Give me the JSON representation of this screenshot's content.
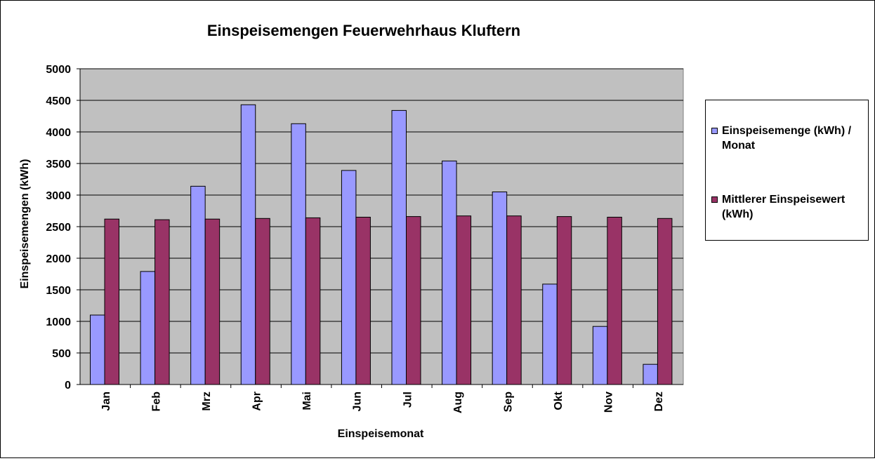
{
  "chart_data": {
    "type": "bar",
    "title": "Einspeisemengen Feuerwehrhaus Kluftern",
    "xlabel": "Einspeisemonat",
    "ylabel": "Einspeisemengen (kWh)",
    "ylim": [
      0,
      5000
    ],
    "yticks": [
      0,
      500,
      1000,
      1500,
      2000,
      2500,
      3000,
      3500,
      4000,
      4500,
      5000
    ],
    "grid": true,
    "legend_position": "right",
    "categories": [
      "Jan",
      "Feb",
      "Mrz",
      "Apr",
      "Mai",
      "Jun",
      "Jul",
      "Aug",
      "Sep",
      "Okt",
      "Nov",
      "Dez"
    ],
    "series": [
      {
        "name": "Einspeisemenge (kWh) / Monat",
        "color": "#9999ff",
        "values": [
          1100,
          1790,
          3140,
          4430,
          4130,
          3390,
          4340,
          3540,
          3050,
          1590,
          920,
          320
        ]
      },
      {
        "name": "Mittlerer Einspeisewert (kWh)",
        "color": "#993366",
        "values": [
          2620,
          2610,
          2620,
          2630,
          2640,
          2650,
          2660,
          2670,
          2670,
          2660,
          2650,
          2630
        ]
      }
    ],
    "plot_background": "#c0c0c0",
    "gridline_color": "#000000"
  }
}
